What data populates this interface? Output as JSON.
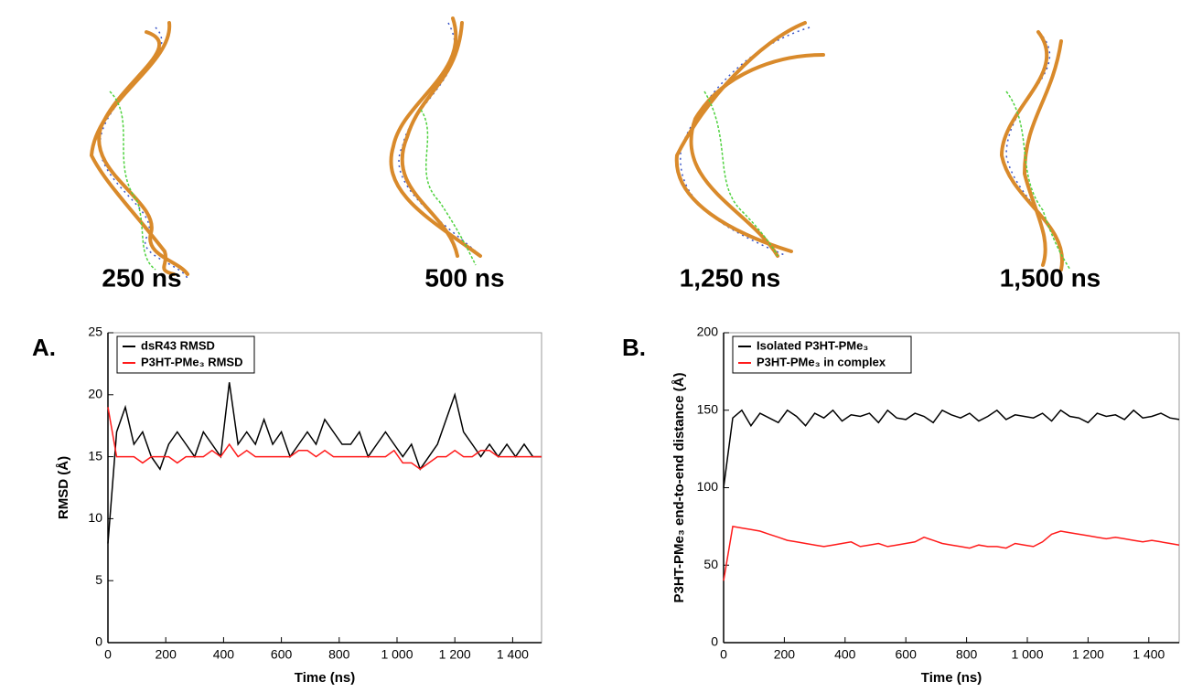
{
  "snapshots": [
    {
      "label": "250 ns"
    },
    {
      "label": "500 ns"
    },
    {
      "label": "1,250 ns"
    },
    {
      "label": "1,500 ns"
    }
  ],
  "chart_data": [
    {
      "type": "line",
      "panel": "A.",
      "xlabel": "Time (ns)",
      "ylabel": "RMSD (Å)",
      "legend": "upper left",
      "x": [
        0,
        30,
        60,
        90,
        120,
        150,
        180,
        210,
        240,
        270,
        300,
        330,
        360,
        390,
        420,
        450,
        480,
        510,
        540,
        570,
        600,
        630,
        660,
        690,
        720,
        750,
        780,
        810,
        840,
        870,
        900,
        930,
        960,
        990,
        1020,
        1050,
        1080,
        1110,
        1140,
        1170,
        1200,
        1230,
        1260,
        1290,
        1320,
        1350,
        1380,
        1410,
        1440,
        1470,
        1500
      ],
      "xlim": [
        0,
        1500
      ],
      "ylim": [
        0,
        25
      ],
      "xticks": [
        0,
        200,
        400,
        600,
        800,
        {
          "value": 1000,
          "label": "1 000"
        },
        {
          "value": 1200,
          "label": "1 200"
        },
        {
          "value": 1400,
          "label": "1 400"
        }
      ],
      "yticks": [
        0,
        5,
        10,
        15,
        20,
        25
      ],
      "series": [
        {
          "name": "dsR43 RMSD",
          "color": "#000000",
          "values": [
            8,
            17,
            19,
            16,
            17,
            15,
            14,
            16,
            17,
            16,
            15,
            17,
            16,
            15,
            21,
            16,
            17,
            16,
            18,
            16,
            17,
            15,
            16,
            17,
            16,
            18,
            17,
            16,
            16,
            17,
            15,
            16,
            17,
            16,
            15,
            16,
            14,
            15,
            16,
            18,
            20,
            17,
            16,
            15,
            16,
            15,
            16,
            15,
            16,
            15,
            15
          ]
        },
        {
          "name": "P3HT-PMe₃ RMSD",
          "color": "#ff1a1a",
          "values": [
            19,
            15,
            15,
            15,
            14.5,
            15,
            15,
            15,
            14.5,
            15,
            15,
            15,
            15.5,
            15,
            16,
            15,
            15.5,
            15,
            15,
            15,
            15,
            15,
            15.5,
            15.5,
            15,
            15.5,
            15,
            15,
            15,
            15,
            15,
            15,
            15,
            15.5,
            14.5,
            14.5,
            14,
            14.5,
            15,
            15,
            15.5,
            15,
            15,
            15.5,
            15.5,
            15,
            15,
            15,
            15,
            15,
            15
          ]
        }
      ]
    },
    {
      "type": "line",
      "panel": "B.",
      "xlabel": "Time (ns)",
      "ylabel": "P3HT-PMe₃ end-to-end distance (Å)",
      "legend": "upper left",
      "x": [
        0,
        30,
        60,
        90,
        120,
        150,
        180,
        210,
        240,
        270,
        300,
        330,
        360,
        390,
        420,
        450,
        480,
        510,
        540,
        570,
        600,
        630,
        660,
        690,
        720,
        750,
        780,
        810,
        840,
        870,
        900,
        930,
        960,
        990,
        1020,
        1050,
        1080,
        1110,
        1140,
        1170,
        1200,
        1230,
        1260,
        1290,
        1320,
        1350,
        1380,
        1410,
        1440,
        1470,
        1500
      ],
      "xlim": [
        0,
        1500
      ],
      "ylim": [
        0,
        200
      ],
      "xticks": [
        0,
        200,
        400,
        600,
        800,
        {
          "value": 1000,
          "label": "1 000"
        },
        {
          "value": 1200,
          "label": "1 200"
        },
        {
          "value": 1400,
          "label": "1 400"
        }
      ],
      "yticks": [
        0,
        50,
        100,
        150,
        200
      ],
      "series": [
        {
          "name": "Isolated P3HT-PMe₃",
          "color": "#000000",
          "values": [
            100,
            145,
            150,
            140,
            148,
            145,
            142,
            150,
            146,
            140,
            148,
            145,
            150,
            143,
            147,
            146,
            148,
            142,
            150,
            145,
            144,
            148,
            146,
            142,
            150,
            147,
            145,
            148,
            143,
            146,
            150,
            144,
            147,
            146,
            145,
            148,
            143,
            150,
            146,
            145,
            142,
            148,
            146,
            147,
            144,
            150,
            145,
            146,
            148,
            145,
            144
          ]
        },
        {
          "name": "P3HT-PMe₃ in complex",
          "color": "#ff1a1a",
          "values": [
            40,
            75,
            74,
            73,
            72,
            70,
            68,
            66,
            65,
            64,
            63,
            62,
            63,
            64,
            65,
            62,
            63,
            64,
            62,
            63,
            64,
            65,
            68,
            66,
            64,
            63,
            62,
            61,
            63,
            62,
            62,
            61,
            64,
            63,
            62,
            65,
            70,
            72,
            71,
            70,
            69,
            68,
            67,
            68,
            67,
            66,
            65,
            66,
            65,
            64,
            63
          ]
        }
      ]
    }
  ]
}
